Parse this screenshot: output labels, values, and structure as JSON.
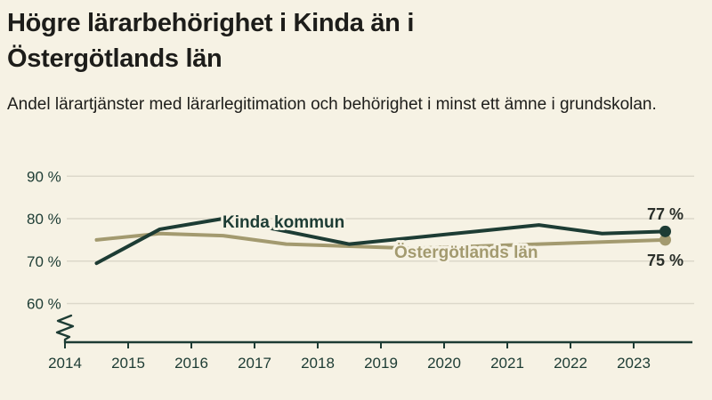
{
  "page": {
    "title": "Högre lärarbehörighet i Kinda än i Östergötlands län",
    "subtitle": "Andel lärartjänster med lärarlegitimation och behörighet i minst ett ämne i grundskolan."
  },
  "colors": {
    "background": "#f6f2e4",
    "text": "#1d1d1a",
    "axis": "#1d3c34",
    "grid": "#dcd8ca",
    "value_label": "#2a2f2a"
  },
  "chart_data": {
    "type": "line",
    "title": "Högre lärarbehörighet i Kinda än i Östergötlands län",
    "subtitle": "Andel lärartjänster med lärarlegitimation och behörighet i minst ett ämne i grundskolan.",
    "xlabel": "",
    "ylabel": "",
    "ylim": [
      60,
      90
    ],
    "y_axis_unit": "%",
    "axis_break_at_bottom": true,
    "grid": "horizontal",
    "legend": "inline-labels",
    "x": [
      2014.5,
      2015.5,
      2016.5,
      2017.5,
      2018.5,
      2019.5,
      2020.5,
      2021.5,
      2022.5,
      2023.5
    ],
    "x_ticks": [
      {
        "value": 2014,
        "label": "2014"
      },
      {
        "value": 2015,
        "label": "2015"
      },
      {
        "value": 2016,
        "label": "2016"
      },
      {
        "value": 2017,
        "label": "2017"
      },
      {
        "value": 2018,
        "label": "2018"
      },
      {
        "value": 2019,
        "label": "2019"
      },
      {
        "value": 2020,
        "label": "2020"
      },
      {
        "value": 2021,
        "label": "2021"
      },
      {
        "value": 2022,
        "label": "2022"
      },
      {
        "value": 2023,
        "label": "2023"
      }
    ],
    "y_ticks": [
      {
        "value": 90,
        "label": "90 %"
      },
      {
        "value": 80,
        "label": "80 %"
      },
      {
        "value": 70,
        "label": "70 %"
      },
      {
        "value": 60,
        "label": "60 %"
      }
    ],
    "series": [
      {
        "name": "Kinda kommun",
        "color": "#1d3c34",
        "values": [
          69.5,
          77.5,
          80,
          77,
          74,
          75.5,
          77,
          78.5,
          76.5,
          77
        ],
        "end_label": "77 %"
      },
      {
        "name": "Östergötlands län",
        "color": "#a39a6f",
        "values": [
          75,
          76.5,
          76,
          74,
          73.5,
          73,
          73.5,
          74,
          74.5,
          75
        ],
        "end_label": "75 %"
      }
    ]
  }
}
